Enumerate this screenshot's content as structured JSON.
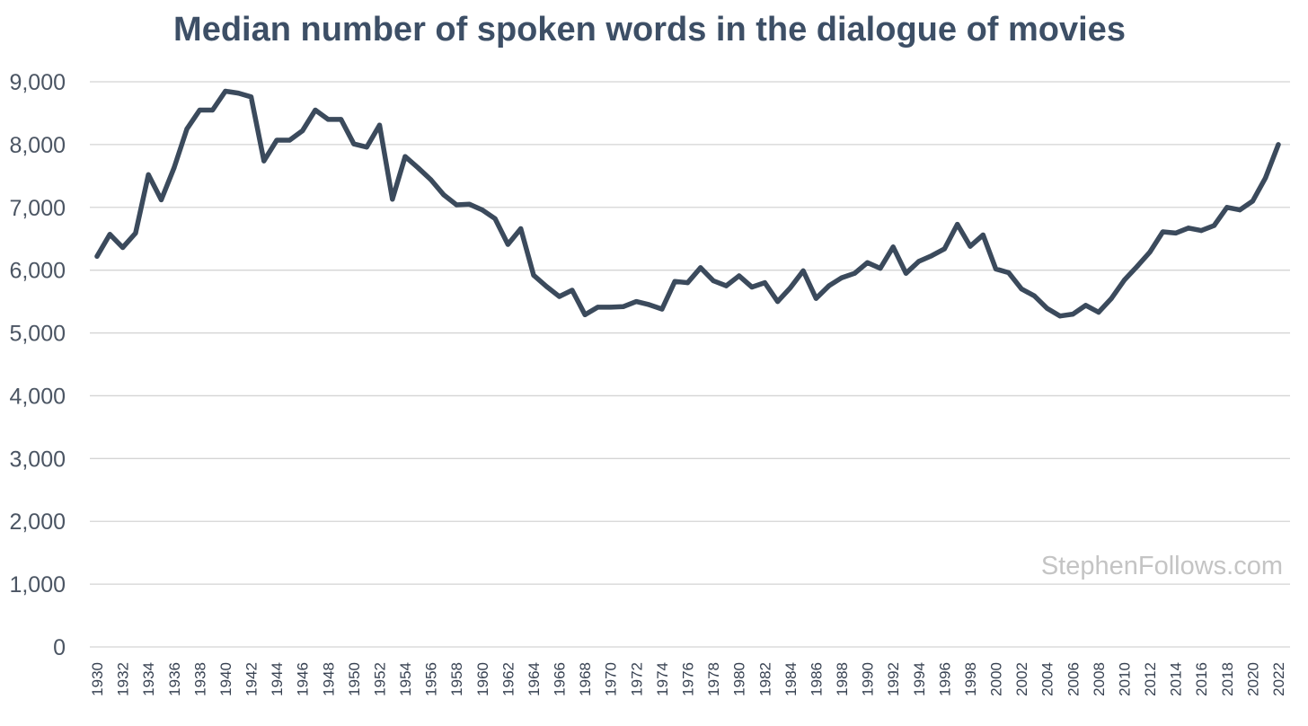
{
  "chart_data": {
    "type": "line",
    "title": "Median number of spoken words in the dialogue of movies",
    "xlabel": "",
    "ylabel": "",
    "x": [
      1930,
      1931,
      1932,
      1933,
      1934,
      1935,
      1936,
      1937,
      1938,
      1939,
      1940,
      1941,
      1942,
      1943,
      1944,
      1945,
      1946,
      1947,
      1948,
      1949,
      1950,
      1951,
      1952,
      1953,
      1954,
      1955,
      1956,
      1957,
      1958,
      1959,
      1960,
      1961,
      1962,
      1963,
      1964,
      1965,
      1966,
      1967,
      1968,
      1969,
      1970,
      1971,
      1972,
      1973,
      1974,
      1975,
      1976,
      1977,
      1978,
      1979,
      1980,
      1981,
      1982,
      1983,
      1984,
      1985,
      1986,
      1987,
      1988,
      1989,
      1990,
      1991,
      1992,
      1993,
      1994,
      1995,
      1996,
      1997,
      1998,
      1999,
      2000,
      2001,
      2002,
      2003,
      2004,
      2005,
      2006,
      2007,
      2008,
      2009,
      2010,
      2011,
      2012,
      2013,
      2014,
      2015,
      2016,
      2017,
      2018,
      2019,
      2020,
      2021,
      2022
    ],
    "series": [
      {
        "values": [
          6220,
          6570,
          6360,
          6590,
          7520,
          7120,
          7630,
          8250,
          8550,
          8550,
          8850,
          8820,
          8760,
          7740,
          8070,
          8070,
          8220,
          8550,
          8400,
          8400,
          8010,
          7960,
          8310,
          7130,
          7810,
          7630,
          7440,
          7200,
          7040,
          7050,
          6960,
          6820,
          6410,
          6660,
          5920,
          5740,
          5580,
          5680,
          5290,
          5410,
          5410,
          5420,
          5500,
          5450,
          5380,
          5820,
          5800,
          6040,
          5830,
          5750,
          5910,
          5730,
          5800,
          5500,
          5720,
          5990,
          5550,
          5750,
          5880,
          5950,
          6120,
          6030,
          6370,
          5950,
          6140,
          6230,
          6340,
          6730,
          6380,
          6560,
          6020,
          5960,
          5700,
          5590,
          5390,
          5270,
          5300,
          5440,
          5330,
          5550,
          5840,
          6060,
          6290,
          6610,
          6590,
          6670,
          6630,
          6710,
          7000,
          6960,
          7100,
          7470,
          8000
        ]
      }
    ],
    "ylim": [
      0,
      9000
    ],
    "yticks": [
      "0",
      "1,000",
      "2,000",
      "3,000",
      "4,000",
      "5,000",
      "6,000",
      "7,000",
      "8,000",
      "9,000"
    ],
    "xticks": [
      "1930",
      "1932",
      "1934",
      "1936",
      "1938",
      "1940",
      "1942",
      "1944",
      "1946",
      "1948",
      "1950",
      "1952",
      "1954",
      "1956",
      "1958",
      "1960",
      "1962",
      "1964",
      "1966",
      "1968",
      "1970",
      "1972",
      "1974",
      "1976",
      "1978",
      "1980",
      "1982",
      "1984",
      "1986",
      "1988",
      "1990",
      "1992",
      "1994",
      "1996",
      "1998",
      "2000",
      "2002",
      "2004",
      "2006",
      "2008",
      "2010",
      "2012",
      "2014",
      "2016",
      "2018",
      "2020",
      "2022"
    ],
    "grid": true,
    "legend": "none",
    "watermark": {
      "main": "StephenFollows",
      "suffix": ".com"
    },
    "colors": {
      "line": "#3b4a5c",
      "title": "#3d4f66",
      "ytick_text": "#4b5563",
      "xtick_text": "#374151",
      "grid": "#d4d4d4",
      "watermark": "#c4c4c4"
    }
  }
}
